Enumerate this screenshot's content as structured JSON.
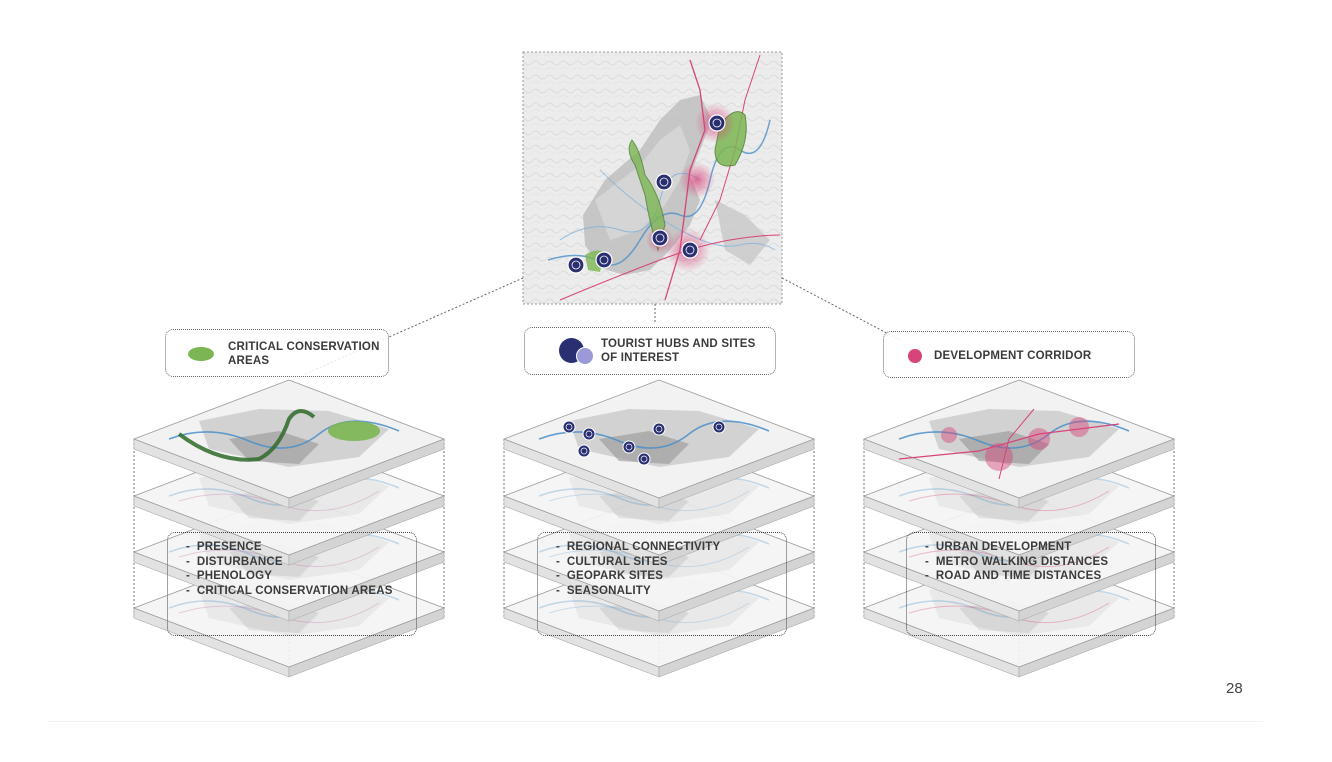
{
  "page_number": "28",
  "colors": {
    "conservation": "#7cb653",
    "tourist": "#2a2f72",
    "tourist_light": "#8f8fd0",
    "development": "#d7447a",
    "river": "#4a8fc9"
  },
  "panels": [
    {
      "legend_lines": [
        "CRITICAL CONSERVATION",
        "AREAS"
      ],
      "legend_icon": "green-ellipse-icon",
      "items": [
        "PRESENCE",
        "DISTURBANCE",
        "PHENOLOGY",
        "CRITICAL CONSERVATION AREAS"
      ]
    },
    {
      "legend_lines": [
        "TOURIST HUBS AND SITES",
        "OF INTEREST"
      ],
      "legend_icon": "blue-circles-icon",
      "items": [
        "REGIONAL CONNECTIVITY",
        "CULTURAL SITES",
        "GEOPARK SITES",
        "SEASONALITY"
      ]
    },
    {
      "legend_lines": [
        "DEVELOPMENT CORRIDOR"
      ],
      "legend_icon": "pink-dot-icon",
      "items": [
        "URBAN DEVELOPMENT",
        "METRO WALKING DISTANCES",
        "ROAD AND TIME DISTANCES"
      ]
    }
  ]
}
